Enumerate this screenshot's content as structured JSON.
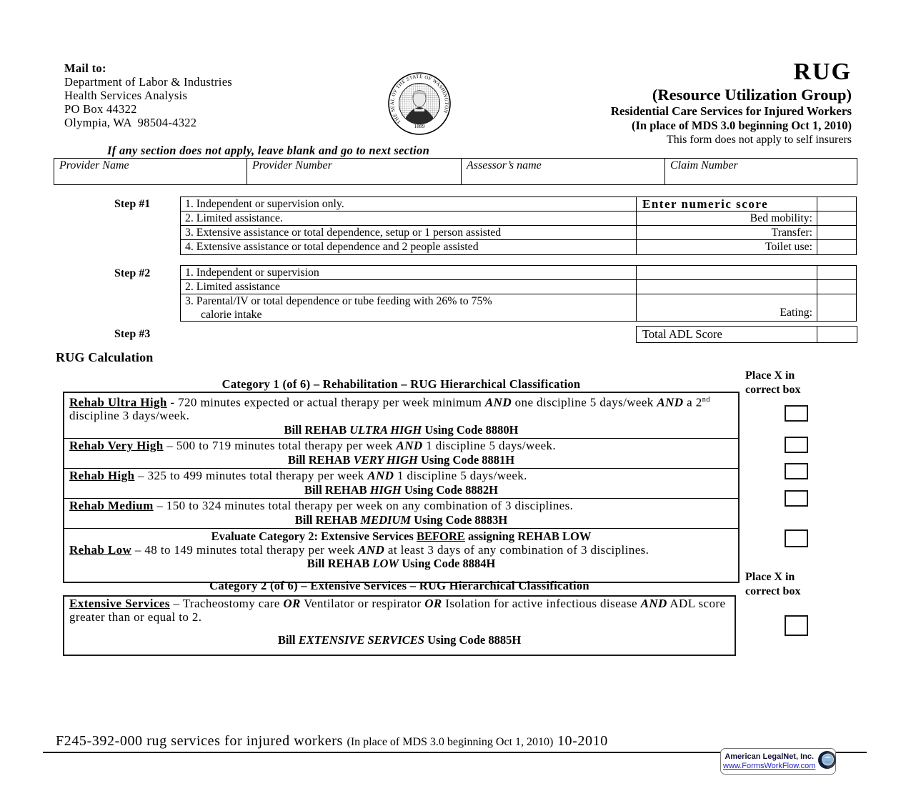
{
  "colors": {
    "ink": "#000000",
    "link_blue": "#2323cc",
    "badge_navy": "#101038"
  },
  "header": {
    "mail_to": {
      "label": "Mail to:",
      "lines": [
        "Department of Labor & Industries",
        "Health Services Analysis",
        "PO Box 44322",
        "Olympia, WA  98504-4322"
      ]
    },
    "seal": {
      "ring_text": "THE SEAL OF THE STATE OF WASHINGTON",
      "year": "1889"
    },
    "title": "RUG",
    "subtitle": "(Resource Utilization Group)",
    "line3": "Residential Care Services for Injured Workers",
    "line4": "(In place of MDS 3.0 beginning Oct 1, 2010)",
    "line5": "This form does not apply to self insurers"
  },
  "instruction": "If any section does not apply, leave blank and go to next section",
  "provider_table": {
    "fields": [
      "Provider Name",
      "Provider Number",
      "Assessor’s name",
      "Claim Number"
    ]
  },
  "step1": {
    "label": "Step #1",
    "rows": [
      {
        "desc": "1. Independent or supervision only.",
        "score": "Enter numeric score"
      },
      {
        "desc": "2. Limited assistance.",
        "score": "Bed mobility:"
      },
      {
        "desc": "3. Extensive assistance or total dependence, setup or 1 person assisted",
        "score": "Transfer:"
      },
      {
        "desc": "4. Extensive assistance or total dependence and 2 people assisted",
        "score": "Toilet use:"
      }
    ]
  },
  "step2": {
    "label": "Step #2",
    "rows": [
      {
        "desc": "1. Independent or supervision",
        "score": ""
      },
      {
        "desc": "2. Limited assistance",
        "score": ""
      },
      {
        "desc_line1": "3. Parental/IV or total dependence or tube feeding with 26% to 75%",
        "desc_line2": "calorie intake",
        "score": "Eating:"
      }
    ]
  },
  "step3": {
    "label": "Step #3",
    "total_label": "Total ADL Score"
  },
  "rug_calculation": {
    "heading": "RUG Calculation",
    "place_x_line1": "Place X in",
    "place_x_line2": "correct box",
    "category1": {
      "header": "Category 1 (of 6) – Rehabilitation – RUG Hierarchical Classification",
      "rows": [
        {
          "body": [
            {
              "t": "Rehab Ultra High",
              "b": true,
              "u": true
            },
            {
              "t": " - 720 minutes expected or actual therapy per week minimum "
            },
            {
              "t": "AND",
              "b": true,
              "i": true
            },
            {
              "t": " one discipline 5 days/week "
            },
            {
              "t": "AND",
              "b": true,
              "i": true
            },
            {
              "t": " a 2"
            },
            {
              "t": "nd",
              "sup": true
            },
            {
              "t": " discipline 3 days/week."
            }
          ],
          "bill": [
            {
              "t": "Bill REHAB ",
              "b": true
            },
            {
              "t": "ULTRA HIGH",
              "b": true,
              "i": true
            },
            {
              "t": " Using Code 8880H",
              "b": true
            }
          ]
        },
        {
          "body": [
            {
              "t": "Rehab Very High",
              "b": true,
              "u": true
            },
            {
              "t": " – 500 to 719 minutes total therapy per week "
            },
            {
              "t": "AND",
              "b": true,
              "i": true
            },
            {
              "t": " 1 discipline 5 days/week."
            }
          ],
          "bill": [
            {
              "t": "Bill REHAB ",
              "b": true
            },
            {
              "t": "VERY HIGH",
              "b": true,
              "i": true
            },
            {
              "t": " Using Code 8881H",
              "b": true
            }
          ]
        },
        {
          "body": [
            {
              "t": "Rehab High",
              "b": true,
              "u": true
            },
            {
              "t": " – 325 to 499 minutes total therapy per week "
            },
            {
              "t": "AND",
              "b": true,
              "i": true
            },
            {
              "t": " 1 discipline 5 days/week."
            }
          ],
          "bill": [
            {
              "t": "Bill REHAB ",
              "b": true
            },
            {
              "t": "HIGH",
              "b": true,
              "i": true
            },
            {
              "t": " Using Code 8882H",
              "b": true
            }
          ]
        },
        {
          "body": [
            {
              "t": "Rehab Medium",
              "b": true,
              "u": true
            },
            {
              "t": " – 150 to 324 minutes total therapy per week on any combination of 3 disciplines."
            }
          ],
          "bill": [
            {
              "t": "Bill REHAB ",
              "b": true
            },
            {
              "t": "MEDIUM",
              "b": true,
              "i": true
            },
            {
              "t": " Using Code 8883H",
              "b": true
            }
          ]
        },
        {
          "evaluate": [
            {
              "t": "Evaluate Category 2:  Extensive Services ",
              "b": true
            },
            {
              "t": "BEFORE",
              "b": true,
              "u": true
            },
            {
              "t": " assigning REHAB LOW",
              "b": true
            }
          ],
          "body": [
            {
              "t": "Rehab Low",
              "b": true,
              "u": true
            },
            {
              "t": " – 48 to 149 minutes total therapy per week "
            },
            {
              "t": "AND",
              "b": true,
              "i": true
            },
            {
              "t": " at least 3 days of any combination of 3 disciplines."
            }
          ],
          "bill": [
            {
              "t": "Bill REHAB ",
              "b": true
            },
            {
              "t": "LOW",
              "b": true,
              "i": true
            },
            {
              "t": " Using Code 8884H",
              "b": true
            }
          ]
        }
      ]
    },
    "category2": {
      "header": "Category 2 (of 6) – Extensive Services – RUG Hierarchical Classification",
      "row": {
        "body": [
          {
            "t": "Extensive Services",
            "b": true,
            "u": true
          },
          {
            "t": " – Tracheostomy care "
          },
          {
            "t": "OR",
            "b": true,
            "i": true
          },
          {
            "t": " Ventilator or respirator "
          },
          {
            "t": "OR",
            "b": true,
            "i": true
          },
          {
            "t": " Isolation for active infectious disease "
          },
          {
            "t": "AND",
            "b": true,
            "i": true
          },
          {
            "t": " ADL score greater than or equal to 2."
          }
        ],
        "bill": [
          {
            "t": "Bill ",
            "b": true
          },
          {
            "t": "EXTENSIVE SERVICES",
            "b": true,
            "i": true
          },
          {
            "t": " Using Code 8885H",
            "b": true
          }
        ]
      }
    }
  },
  "footer": {
    "left_main": "F245-392-000 rug services for injured workers ",
    "left_small": "(In place of MDS 3.0 beginning Oct 1, 2010)",
    "left_suffix": " 10-2010",
    "legalnet": {
      "company": "American LegalNet, Inc.",
      "url": "www.FormsWorkFlow.com"
    }
  }
}
